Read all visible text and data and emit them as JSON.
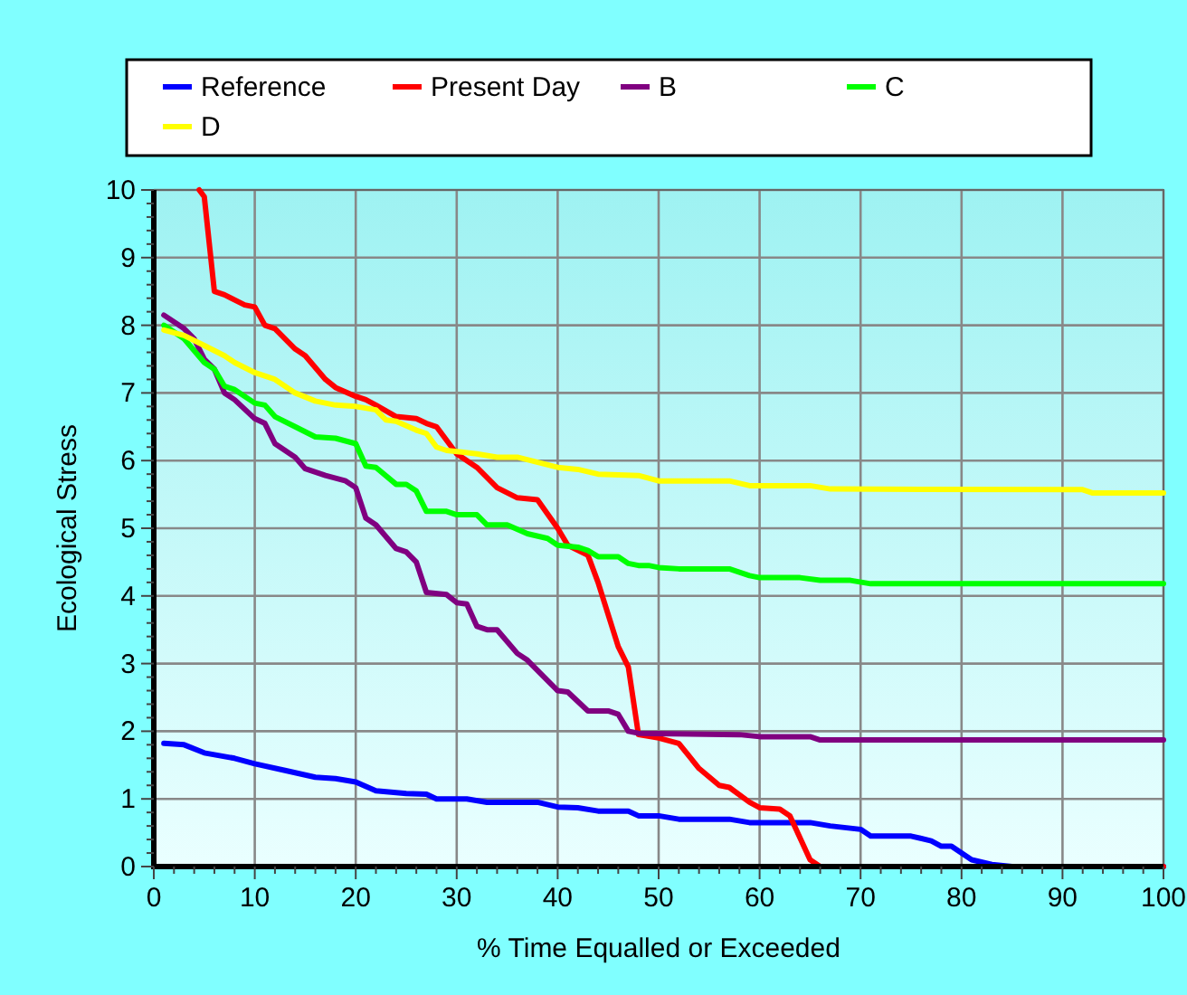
{
  "chart_data": {
    "type": "line",
    "xlabel": "% Time Equalled or Exceeded",
    "ylabel": "Ecological Stress",
    "xlim": [
      0,
      100
    ],
    "ylim": [
      0,
      10
    ],
    "xticks": [
      0,
      {
        "value": 2,
        "label": null
      },
      {
        "value": 4,
        "label": null
      },
      {
        "value": 6,
        "label": null
      },
      {
        "value": 8,
        "label": null
      },
      10,
      {
        "value": 12,
        "label": null
      },
      {
        "value": 14,
        "label": null
      },
      {
        "value": 16,
        "label": null
      },
      {
        "value": 18,
        "label": null
      },
      20,
      {
        "value": 22,
        "label": null
      },
      {
        "value": 24,
        "label": null
      },
      {
        "value": 26,
        "label": null
      },
      {
        "value": 28,
        "label": null
      },
      30,
      {
        "value": 32,
        "label": null
      },
      {
        "value": 34,
        "label": null
      },
      {
        "value": 36,
        "label": null
      },
      {
        "value": 38,
        "label": null
      },
      40,
      {
        "value": 42,
        "label": null
      },
      {
        "value": 44,
        "label": null
      },
      {
        "value": 46,
        "label": null
      },
      {
        "value": 48,
        "label": null
      },
      50,
      {
        "value": 52,
        "label": null
      },
      {
        "value": 54,
        "label": null
      },
      {
        "value": 56,
        "label": null
      },
      {
        "value": 58,
        "label": null
      },
      60,
      {
        "value": 62,
        "label": null
      },
      {
        "value": 64,
        "label": null
      },
      {
        "value": 66,
        "label": null
      },
      {
        "value": 68,
        "label": null
      },
      70,
      {
        "value": 72,
        "label": null
      },
      {
        "value": 74,
        "label": null
      },
      {
        "value": 76,
        "label": null
      },
      {
        "value": 78,
        "label": null
      },
      80,
      {
        "value": 82,
        "label": null
      },
      {
        "value": 84,
        "label": null
      },
      {
        "value": 86,
        "label": null
      },
      {
        "value": 88,
        "label": null
      },
      90,
      {
        "value": 92,
        "label": null
      },
      {
        "value": 94,
        "label": null
      },
      {
        "value": 96,
        "label": null
      },
      {
        "value": 98,
        "label": null
      },
      100
    ],
    "yticks": [
      0,
      {
        "value": 0.2,
        "label": null
      },
      {
        "value": 0.4,
        "label": null
      },
      {
        "value": 0.6,
        "label": null
      },
      {
        "value": 0.8,
        "label": null
      },
      1,
      {
        "value": 1.2,
        "label": null
      },
      {
        "value": 1.4,
        "label": null
      },
      {
        "value": 1.6,
        "label": null
      },
      {
        "value": 1.8,
        "label": null
      },
      2,
      {
        "value": 2.2,
        "label": null
      },
      {
        "value": 2.4,
        "label": null
      },
      {
        "value": 2.6,
        "label": null
      },
      {
        "value": 2.8,
        "label": null
      },
      3,
      {
        "value": 3.2,
        "label": null
      },
      {
        "value": 3.4,
        "label": null
      },
      {
        "value": 3.6,
        "label": null
      },
      {
        "value": 3.8,
        "label": null
      },
      4,
      {
        "value": 4.2,
        "label": null
      },
      {
        "value": 4.4,
        "label": null
      },
      {
        "value": 4.6,
        "label": null
      },
      {
        "value": 4.8,
        "label": null
      },
      5,
      {
        "value": 5.2,
        "label": null
      },
      {
        "value": 5.4,
        "label": null
      },
      {
        "value": 5.6,
        "label": null
      },
      {
        "value": 5.8,
        "label": null
      },
      6,
      {
        "value": 6.2,
        "label": null
      },
      {
        "value": 6.4,
        "label": null
      },
      {
        "value": 6.6,
        "label": null
      },
      {
        "value": 6.8,
        "label": null
      },
      7,
      {
        "value": 7.2,
        "label": null
      },
      {
        "value": 7.4,
        "label": null
      },
      {
        "value": 7.6,
        "label": null
      },
      {
        "value": 7.8,
        "label": null
      },
      8,
      {
        "value": 8.2,
        "label": null
      },
      {
        "value": 8.4,
        "label": null
      },
      {
        "value": 8.6,
        "label": null
      },
      {
        "value": 8.8,
        "label": null
      },
      9,
      {
        "value": 9.2,
        "label": null
      },
      {
        "value": 9.4,
        "label": null
      },
      {
        "value": 9.6,
        "label": null
      },
      {
        "value": 9.8,
        "label": null
      },
      10
    ],
    "grid": true,
    "legend": "top",
    "line_style": "solid",
    "series": [
      {
        "name": "Reference",
        "color": "#0000ff",
        "x": [
          1,
          3,
          5,
          8,
          10,
          13,
          16,
          18,
          20,
          22,
          25,
          27,
          28,
          31,
          33,
          38,
          40,
          42,
          44,
          47,
          48,
          50,
          52,
          57,
          59,
          65,
          67,
          70,
          71,
          75,
          77,
          78,
          79,
          81,
          83,
          85,
          100
        ],
        "values": [
          1.82,
          1.8,
          1.68,
          1.6,
          1.52,
          1.42,
          1.32,
          1.3,
          1.25,
          1.12,
          1.08,
          1.07,
          1.0,
          1.0,
          0.95,
          0.95,
          0.88,
          0.87,
          0.82,
          0.82,
          0.75,
          0.75,
          0.7,
          0.7,
          0.65,
          0.65,
          0.6,
          0.55,
          0.45,
          0.45,
          0.38,
          0.3,
          0.3,
          0.1,
          0.03,
          0,
          0
        ]
      },
      {
        "name": "Present Day",
        "color": "#ff0000",
        "x": [
          4.5,
          5,
          6,
          7,
          9,
          10,
          11,
          12,
          14,
          15,
          17,
          18,
          20,
          21,
          22,
          24,
          26,
          27,
          28,
          30,
          32,
          34,
          36,
          38,
          40,
          41,
          43,
          44,
          46,
          47,
          48,
          50,
          52,
          54,
          56,
          57,
          59,
          60,
          62,
          63,
          65,
          66,
          100
        ],
        "values": [
          10,
          9.9,
          8.5,
          8.45,
          8.3,
          8.27,
          8.0,
          7.95,
          7.65,
          7.55,
          7.2,
          7.08,
          6.95,
          6.9,
          6.82,
          6.65,
          6.62,
          6.55,
          6.5,
          6.1,
          5.9,
          5.6,
          5.45,
          5.42,
          5.0,
          4.75,
          4.6,
          4.2,
          3.25,
          2.95,
          1.95,
          1.9,
          1.82,
          1.45,
          1.2,
          1.17,
          0.95,
          0.87,
          0.85,
          0.75,
          0.1,
          0,
          0
        ]
      },
      {
        "name": "B",
        "color": "#800080",
        "x": [
          1,
          3,
          4,
          5,
          6,
          7,
          8,
          10,
          11,
          12,
          14,
          15,
          17,
          19,
          20,
          21,
          22,
          24,
          25,
          26,
          27,
          29,
          30,
          31,
          32,
          33,
          34,
          36,
          37,
          39,
          40,
          41,
          43,
          45,
          46,
          47,
          48,
          58,
          60,
          65,
          66,
          100
        ],
        "values": [
          8.15,
          7.95,
          7.8,
          7.5,
          7.35,
          7.0,
          6.9,
          6.62,
          6.55,
          6.25,
          6.05,
          5.88,
          5.78,
          5.7,
          5.6,
          5.15,
          5.05,
          4.7,
          4.65,
          4.5,
          4.05,
          4.02,
          3.9,
          3.88,
          3.55,
          3.5,
          3.5,
          3.15,
          3.05,
          2.75,
          2.6,
          2.58,
          2.3,
          2.3,
          2.25,
          2.0,
          1.97,
          1.95,
          1.92,
          1.92,
          1.87,
          1.87
        ]
      },
      {
        "name": "C",
        "color": "#00ff00",
        "x": [
          1,
          3,
          5,
          6,
          7,
          8,
          10,
          11,
          12,
          14,
          16,
          18,
          20,
          21,
          22,
          24,
          25,
          26,
          27,
          29,
          30,
          32,
          33,
          35,
          37,
          39,
          40,
          42,
          43,
          44,
          46,
          47,
          48,
          49,
          50,
          52,
          57,
          59,
          60,
          64,
          66,
          69,
          71,
          100
        ],
        "values": [
          8.0,
          7.8,
          7.45,
          7.35,
          7.1,
          7.05,
          6.85,
          6.82,
          6.65,
          6.5,
          6.35,
          6.33,
          6.25,
          5.92,
          5.9,
          5.65,
          5.65,
          5.55,
          5.25,
          5.25,
          5.2,
          5.2,
          5.05,
          5.05,
          4.92,
          4.85,
          4.75,
          4.72,
          4.67,
          4.58,
          4.58,
          4.48,
          4.45,
          4.45,
          4.42,
          4.4,
          4.4,
          4.3,
          4.27,
          4.27,
          4.23,
          4.23,
          4.18,
          4.18
        ]
      },
      {
        "name": "D",
        "color": "#ffff00",
        "x": [
          1,
          3,
          5,
          7,
          8,
          10,
          12,
          14,
          16,
          18,
          20,
          22,
          23,
          24,
          26,
          27,
          28,
          29,
          32,
          34,
          36,
          40,
          42,
          44,
          48,
          50,
          57,
          59,
          65,
          67,
          92,
          93,
          100
        ],
        "values": [
          7.93,
          7.85,
          7.7,
          7.55,
          7.45,
          7.3,
          7.2,
          7.0,
          6.88,
          6.82,
          6.8,
          6.75,
          6.6,
          6.58,
          6.45,
          6.4,
          6.2,
          6.15,
          6.1,
          6.05,
          6.05,
          5.9,
          5.87,
          5.8,
          5.78,
          5.7,
          5.7,
          5.63,
          5.63,
          5.58,
          5.57,
          5.52,
          5.52
        ]
      }
    ]
  }
}
